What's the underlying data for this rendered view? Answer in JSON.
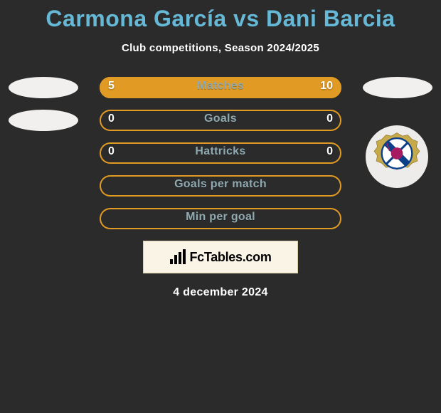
{
  "title": "Carmona García vs Dani Barcia",
  "subtitle": "Club competitions, Season 2024/2025",
  "date": "4 december 2024",
  "logo_text": "FcTables.com",
  "colors": {
    "title": "#65b8d6",
    "bar_border": "#e19a23",
    "bar_fill": "#e19a23",
    "metric_label": "#8fa9b0",
    "background": "#2b2b2b",
    "badge_bg": "#f1f0ee",
    "logo_bg": "#faf4e6",
    "logo_border": "#d6cfa8"
  },
  "crest_colors": {
    "top": "#c5a94a",
    "stripe1": "#0b3f8a",
    "stripe2": "#ffffff",
    "center": "#a71b60"
  },
  "bar_total_width": 340,
  "rows": [
    {
      "label": "Matches",
      "left": "5",
      "right": "10",
      "left_fill_pct": 33,
      "right_fill_pct": 67,
      "show_left_badge": true,
      "show_right_badge": true,
      "show_values": true
    },
    {
      "label": "Goals",
      "left": "0",
      "right": "0",
      "left_fill_pct": 0,
      "right_fill_pct": 0,
      "show_left_badge": true,
      "show_right_badge": false,
      "show_values": true
    },
    {
      "label": "Hattricks",
      "left": "0",
      "right": "0",
      "left_fill_pct": 0,
      "right_fill_pct": 0,
      "show_left_badge": false,
      "show_right_badge": false,
      "show_values": true
    },
    {
      "label": "Goals per match",
      "left": "",
      "right": "",
      "left_fill_pct": 0,
      "right_fill_pct": 0,
      "show_left_badge": false,
      "show_right_badge": false,
      "show_values": false
    },
    {
      "label": "Min per goal",
      "left": "",
      "right": "",
      "left_fill_pct": 0,
      "right_fill_pct": 0,
      "show_left_badge": false,
      "show_right_badge": false,
      "show_values": false
    }
  ]
}
